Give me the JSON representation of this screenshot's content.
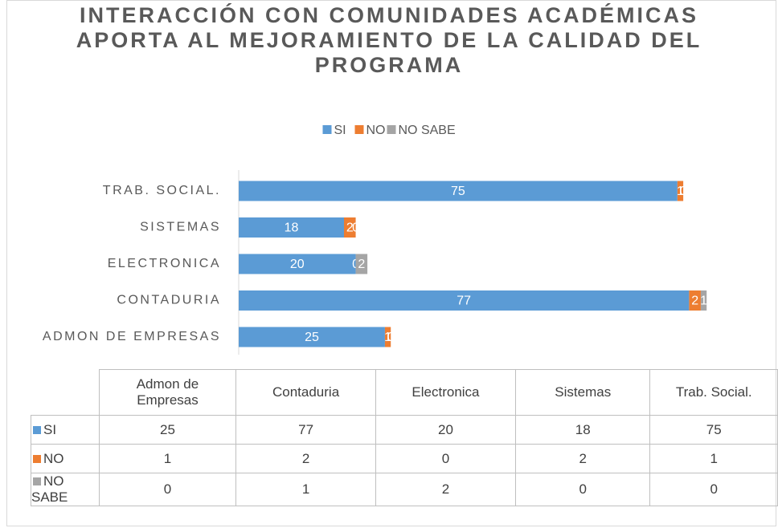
{
  "chart_data": {
    "type": "stacked_bar_horizontal",
    "title": "INTERACCIÓN CON COMUNIDADES ACADÉMICAS APORTA AL MEJORAMIENTO DE LA CALIDAD DEL PROGRAMA",
    "categories": [
      "Admon de Empresas",
      "Contaduria",
      "Electronica",
      "Sistemas",
      "Trab. Social."
    ],
    "category_labels": [
      "ADMON DE EMPRESAS",
      "CONTADURIA",
      "ELECTRONICA",
      "SISTEMAS",
      "TRAB. SOCIAL."
    ],
    "series": [
      {
        "name": "SI",
        "color": "#5b9bd5",
        "values": [
          25,
          77,
          20,
          18,
          75
        ]
      },
      {
        "name": "NO",
        "color": "#ed7d31",
        "values": [
          1,
          2,
          0,
          2,
          1
        ]
      },
      {
        "name": "NO SABE",
        "color": "#a5a5a5",
        "values": [
          0,
          1,
          2,
          0,
          0
        ]
      }
    ],
    "xlim": [
      0,
      90
    ],
    "legend": "top",
    "data_table": true
  }
}
